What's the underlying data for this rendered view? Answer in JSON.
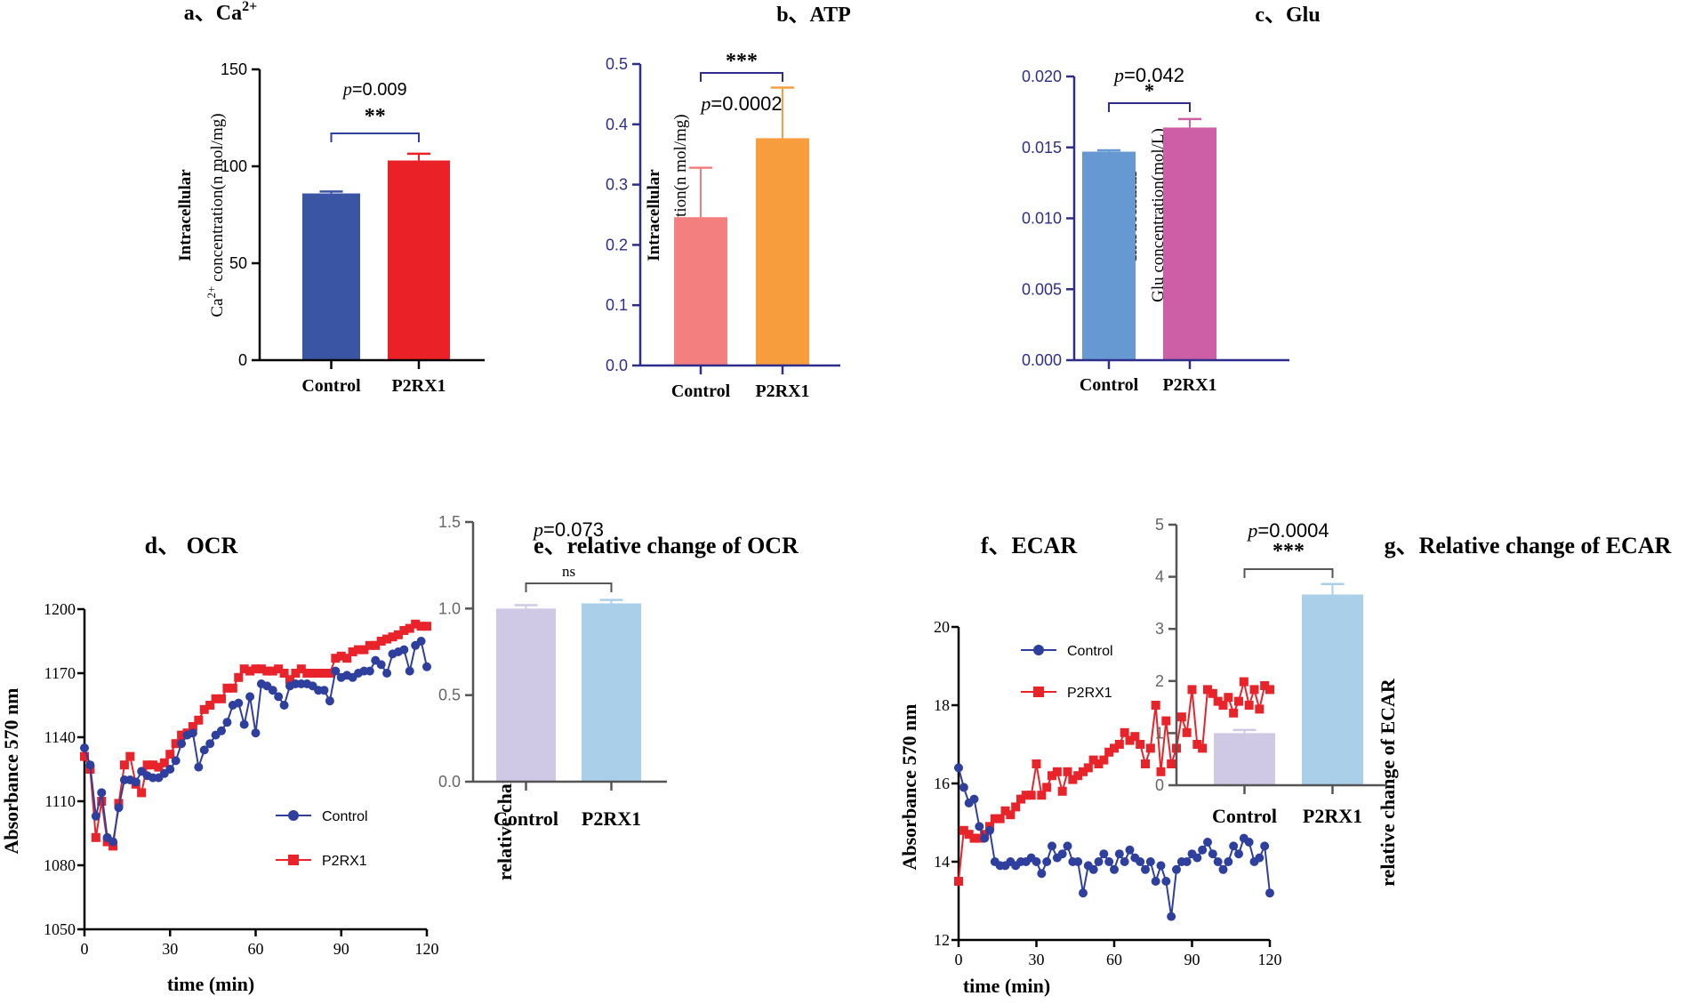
{
  "chart_data": [
    {
      "id": "a",
      "type": "bar",
      "title": "a、Ca",
      "title_sup": "2+",
      "categories": [
        "Control",
        "P2RX1"
      ],
      "values": [
        86,
        103
      ],
      "errors": [
        1,
        3.5
      ],
      "colors": [
        "#3a55a3",
        "#ea2227"
      ],
      "ylabel_line1": "Intracellular",
      "ylabel_line2_pre": "Ca",
      "ylabel_sup": "2+",
      "ylabel_line2_post": " concentration(n mol/mg)",
      "ylim": [
        0,
        150
      ],
      "yticks": [
        0,
        50,
        100,
        150
      ],
      "ytick_labels": [
        "0",
        "50",
        "100",
        "150"
      ],
      "p_label": "p",
      "p_value": "=0.009",
      "stars": "**"
    },
    {
      "id": "b",
      "type": "bar",
      "title": "b、ATP",
      "categories": [
        "Control",
        "P2RX1"
      ],
      "values": [
        0.246,
        0.377
      ],
      "errors": [
        0.082,
        0.084
      ],
      "colors": [
        "#f47f7f",
        "#f79d3e"
      ],
      "ylabel_line1": "Intracellular",
      "ylabel_line2": "ATP concentration(n mol/mg)",
      "ylim": [
        0,
        0.5
      ],
      "yticks": [
        0,
        0.1,
        0.2,
        0.3,
        0.4,
        0.5
      ],
      "ytick_labels": [
        "0.0",
        "0.1",
        "0.2",
        "0.3",
        "0.4",
        "0.5"
      ],
      "p_label": "p",
      "p_value": "=0.0002",
      "stars": "***"
    },
    {
      "id": "c",
      "type": "bar",
      "title": "c、Glu",
      "categories": [
        "Control",
        "P2RX1"
      ],
      "values": [
        0.0147,
        0.0164
      ],
      "errors": [
        0.0001,
        0.0006
      ],
      "colors": [
        "#6699d2",
        "#cc5fa5"
      ],
      "ylabel_line1": "Intracellular",
      "ylabel_line2": "Glu concentration(mol/L)",
      "ylim": [
        0,
        0.02
      ],
      "yticks": [
        0,
        0.005,
        0.01,
        0.015,
        0.02
      ],
      "ytick_labels": [
        "0.000",
        "0.005",
        "0.010",
        "0.015",
        "0.020"
      ],
      "p_label": "p",
      "p_value": "=0.042",
      "stars": "*"
    },
    {
      "id": "d",
      "type": "line",
      "title": "d、 OCR",
      "xlabel": "time (min)",
      "ylabel": "Absorbance 570 nm",
      "xlim": [
        0,
        120
      ],
      "xticks": [
        0,
        30,
        60,
        90,
        120
      ],
      "xtick_labels": [
        "0",
        "30",
        "60",
        "90",
        "120"
      ],
      "ylim": [
        1050,
        1200
      ],
      "yticks": [
        1050,
        1080,
        1110,
        1140,
        1170,
        1200
      ],
      "ytick_labels": [
        "1050",
        "1080",
        "1110",
        "1140",
        "1170",
        "1200"
      ],
      "series": [
        {
          "name": "Control",
          "color": "#2e3f9e",
          "marker": "circle",
          "x": [
            0,
            2,
            4,
            6,
            8,
            10,
            12,
            14,
            16,
            18,
            20,
            22,
            24,
            26,
            28,
            30,
            32,
            34,
            36,
            38,
            40,
            42,
            44,
            46,
            48,
            50,
            52,
            54,
            56,
            58,
            60,
            62,
            64,
            66,
            68,
            70,
            72,
            74,
            76,
            78,
            80,
            82,
            84,
            86,
            88,
            90,
            92,
            94,
            96,
            98,
            100,
            102,
            104,
            106,
            108,
            110,
            112,
            114,
            116,
            118,
            120
          ],
          "values": [
            1135,
            1127,
            1103,
            1114,
            1093,
            1091,
            1107,
            1120,
            1120,
            1119,
            1124,
            1122,
            1121,
            1121,
            1123,
            1125,
            1129,
            1137,
            1141,
            1142,
            1126,
            1134,
            1137,
            1141,
            1143,
            1147,
            1155,
            1156,
            1146,
            1159,
            1142,
            1165,
            1164,
            1162,
            1159,
            1155,
            1164,
            1165,
            1165,
            1165,
            1164,
            1162,
            1162,
            1157,
            1171,
            1168,
            1169,
            1168,
            1170,
            1171,
            1171,
            1176,
            1174,
            1170,
            1179,
            1180,
            1181,
            1171,
            1183,
            1185,
            1173
          ]
        },
        {
          "name": "P2RX1",
          "color": "#e8232a",
          "marker": "square",
          "x": [
            0,
            2,
            4,
            6,
            8,
            10,
            12,
            14,
            16,
            18,
            20,
            22,
            24,
            26,
            28,
            30,
            32,
            34,
            36,
            38,
            40,
            42,
            44,
            46,
            48,
            50,
            52,
            54,
            56,
            58,
            60,
            62,
            64,
            66,
            68,
            70,
            72,
            74,
            76,
            78,
            80,
            82,
            84,
            86,
            88,
            90,
            92,
            94,
            96,
            98,
            100,
            102,
            104,
            106,
            108,
            110,
            112,
            114,
            116,
            118,
            120
          ],
          "values": [
            1131,
            1125,
            1093,
            1110,
            1091,
            1089,
            1109,
            1127,
            1131,
            1118,
            1114,
            1127,
            1127,
            1126,
            1128,
            1132,
            1137,
            1141,
            1142,
            1145,
            1148,
            1153,
            1155,
            1158,
            1158,
            1163,
            1163,
            1168,
            1172,
            1171,
            1172,
            1172,
            1171,
            1171,
            1172,
            1170,
            1167,
            1170,
            1172,
            1170,
            1170,
            1170,
            1170,
            1170,
            1177,
            1178,
            1177,
            1180,
            1181,
            1181,
            1183,
            1183,
            1185,
            1186,
            1187,
            1188,
            1190,
            1191,
            1193,
            1192,
            1192
          ]
        }
      ]
    },
    {
      "id": "e",
      "type": "bar",
      "title": "e、relative change of OCR",
      "categories": [
        "Control",
        "P2RX1"
      ],
      "values": [
        1.0,
        1.03
      ],
      "errors": [
        0.02,
        0.02
      ],
      "colors": [
        "#cfc9e5",
        "#a9cfe9"
      ],
      "ylabel": "relative change of OCR",
      "ylim": [
        0,
        1.5
      ],
      "yticks": [
        0,
        0.5,
        1.0,
        1.5
      ],
      "ytick_labels": [
        "0.0",
        "0.5",
        "1.0",
        "1.5"
      ],
      "p_label": "p",
      "p_value": "=0.073",
      "stars": "ns"
    },
    {
      "id": "f",
      "type": "line",
      "title": "f、ECAR",
      "xlabel": "time (min)",
      "ylabel": "Absorbance 570 nm",
      "xlim": [
        0,
        120
      ],
      "xticks": [
        0,
        30,
        60,
        90,
        120
      ],
      "xtick_labels": [
        "0",
        "30",
        "60",
        "90",
        "120"
      ],
      "ylim": [
        12,
        20
      ],
      "yticks": [
        12,
        14,
        16,
        18,
        20
      ],
      "ytick_labels": [
        "12",
        "14",
        "16",
        "18",
        "20"
      ],
      "series": [
        {
          "name": "Control",
          "color": "#2e3f9e",
          "marker": "circle",
          "x": [
            0,
            2,
            4,
            6,
            8,
            10,
            12,
            14,
            16,
            18,
            20,
            22,
            24,
            26,
            28,
            30,
            32,
            34,
            36,
            38,
            40,
            42,
            44,
            46,
            48,
            50,
            52,
            54,
            56,
            58,
            60,
            62,
            64,
            66,
            68,
            70,
            72,
            74,
            76,
            78,
            80,
            82,
            84,
            86,
            88,
            90,
            92,
            94,
            96,
            98,
            100,
            102,
            104,
            106,
            108,
            110,
            112,
            114,
            116,
            118,
            120
          ],
          "values": [
            16.4,
            15.9,
            15.5,
            15.6,
            14.9,
            14.6,
            14.8,
            14.0,
            13.9,
            13.9,
            14.0,
            13.9,
            14.0,
            14.0,
            14.1,
            14.0,
            13.7,
            14.0,
            14.4,
            14.1,
            14.2,
            14.4,
            14.0,
            14.0,
            13.2,
            13.9,
            13.8,
            14.0,
            14.2,
            14.0,
            13.8,
            14.2,
            14.0,
            14.3,
            14.1,
            14.0,
            13.8,
            14.0,
            13.5,
            13.9,
            13.5,
            12.6,
            13.8,
            14.0,
            14.0,
            14.2,
            14.1,
            14.3,
            14.5,
            14.2,
            14.0,
            13.8,
            14.0,
            14.4,
            14.2,
            14.6,
            14.5,
            14.0,
            14.1,
            14.4,
            13.2
          ]
        },
        {
          "name": "P2RX1",
          "color": "#e8232a",
          "marker": "square",
          "x": [
            0,
            2,
            4,
            6,
            8,
            10,
            12,
            14,
            16,
            18,
            20,
            22,
            24,
            26,
            28,
            30,
            32,
            34,
            36,
            38,
            40,
            42,
            44,
            46,
            48,
            50,
            52,
            54,
            56,
            58,
            60,
            62,
            64,
            66,
            68,
            70,
            72,
            74,
            76,
            78,
            80,
            82,
            84,
            86,
            88,
            90,
            92,
            94,
            96,
            98,
            100,
            102,
            104,
            106,
            108,
            110,
            112,
            114,
            116,
            118,
            120
          ],
          "values": [
            13.5,
            14.8,
            14.7,
            14.6,
            14.6,
            14.7,
            14.9,
            15.1,
            15.1,
            15.3,
            15.2,
            15.4,
            15.6,
            15.7,
            15.7,
            16.5,
            15.7,
            15.9,
            16.2,
            16.3,
            15.8,
            16.3,
            16.1,
            16.2,
            16.3,
            16.4,
            16.6,
            16.5,
            16.6,
            16.8,
            16.9,
            17.0,
            17.3,
            17.1,
            17.2,
            17.0,
            16.5,
            16.9,
            18.0,
            16.3,
            17.6,
            16.5,
            16.9,
            17.7,
            17.3,
            18.4,
            17.0,
            16.9,
            18.4,
            18.3,
            18.1,
            18.0,
            18.2,
            17.8,
            18.1,
            18.6,
            18.0,
            18.4,
            17.9,
            18.5,
            18.4
          ]
        }
      ]
    },
    {
      "id": "g",
      "type": "bar",
      "title": "g、Relative change of ECAR",
      "categories": [
        "Control",
        "P2RX1"
      ],
      "values": [
        1.0,
        3.66
      ],
      "errors": [
        0.06,
        0.2
      ],
      "colors": [
        "#cfc9e5",
        "#a9cfe9"
      ],
      "ylabel": "relative change of ECAR",
      "ylim": [
        0,
        5
      ],
      "yticks": [
        0,
        1,
        2,
        3,
        4,
        5
      ],
      "ytick_labels": [
        "0",
        "1",
        "2",
        "3",
        "4",
        "5"
      ],
      "p_label": "p",
      "p_value": "=0.0004",
      "stars": "***"
    }
  ]
}
